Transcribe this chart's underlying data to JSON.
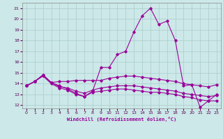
{
  "xlabel": "Windchill (Refroidissement éolien,°C)",
  "background_color": "#cce8e8",
  "grid_color": "#aacccc",
  "line_color": "#990099",
  "xlim": [
    -0.5,
    23.5
  ],
  "ylim": [
    11.7,
    21.5
  ],
  "yticks": [
    12,
    13,
    14,
    15,
    16,
    17,
    18,
    19,
    20,
    21
  ],
  "xticks": [
    0,
    1,
    2,
    3,
    4,
    5,
    6,
    7,
    8,
    9,
    10,
    11,
    12,
    13,
    14,
    15,
    16,
    17,
    18,
    19,
    20,
    21,
    22,
    23
  ],
  "series": [
    [
      13.8,
      14.2,
      14.8,
      14.1,
      13.8,
      13.5,
      13.1,
      12.8,
      13.3,
      15.5,
      15.5,
      16.7,
      17.0,
      18.8,
      20.3,
      21.0,
      19.5,
      19.8,
      18.0,
      13.8,
      13.9,
      11.8,
      12.4,
      13.0
    ],
    [
      13.8,
      14.2,
      14.8,
      14.1,
      14.2,
      14.2,
      14.3,
      14.3,
      14.3,
      14.3,
      14.5,
      14.6,
      14.7,
      14.7,
      14.6,
      14.5,
      14.4,
      14.3,
      14.2,
      14.0,
      13.9,
      13.8,
      13.7,
      13.9
    ],
    [
      13.8,
      14.2,
      14.8,
      14.1,
      13.7,
      13.6,
      13.3,
      13.1,
      13.4,
      13.6,
      13.7,
      13.8,
      13.8,
      13.8,
      13.7,
      13.6,
      13.5,
      13.4,
      13.3,
      13.1,
      13.0,
      12.9,
      12.8,
      12.9
    ],
    [
      13.8,
      14.2,
      14.7,
      14.0,
      13.6,
      13.4,
      13.0,
      12.8,
      13.2,
      13.3,
      13.4,
      13.5,
      13.5,
      13.4,
      13.3,
      13.2,
      13.2,
      13.1,
      13.0,
      12.8,
      12.7,
      12.5,
      12.4,
      12.4
    ]
  ]
}
